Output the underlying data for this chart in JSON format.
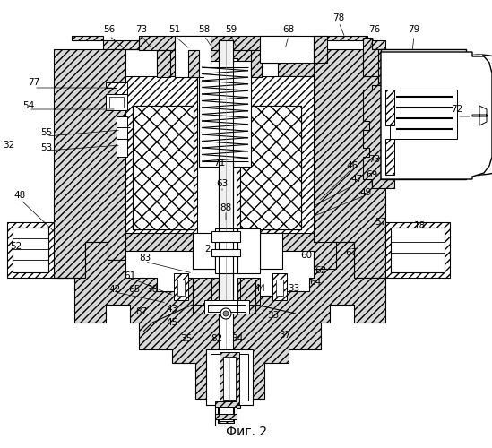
{
  "title": "Фиг. 2",
  "title_fontsize": 10,
  "bg_color": "#ffffff",
  "labels": [
    [
      "56",
      122,
      33
    ],
    [
      "73",
      158,
      33
    ],
    [
      "51",
      195,
      33
    ],
    [
      "58",
      228,
      33
    ],
    [
      "59",
      258,
      33
    ],
    [
      "68",
      322,
      33
    ],
    [
      "78",
      378,
      20
    ],
    [
      "76",
      418,
      33
    ],
    [
      "79",
      462,
      33
    ],
    [
      "77",
      38,
      92
    ],
    [
      "54",
      32,
      118
    ],
    [
      "32",
      10,
      162
    ],
    [
      "55",
      52,
      148
    ],
    [
      "53",
      52,
      165
    ],
    [
      "48",
      22,
      218
    ],
    [
      "46",
      393,
      185
    ],
    [
      "47",
      398,
      200
    ],
    [
      "49",
      408,
      215
    ],
    [
      "57",
      425,
      248
    ],
    [
      "18",
      468,
      252
    ],
    [
      "71",
      245,
      182
    ],
    [
      "63",
      248,
      205
    ],
    [
      "88",
      252,
      232
    ],
    [
      "52",
      18,
      275
    ],
    [
      "83",
      162,
      288
    ],
    [
      "61",
      145,
      308
    ],
    [
      "42",
      128,
      323
    ],
    [
      "65",
      150,
      323
    ],
    [
      "38",
      170,
      323
    ],
    [
      "43",
      192,
      345
    ],
    [
      "87",
      158,
      348
    ],
    [
      "45",
      192,
      360
    ],
    [
      "35",
      208,
      378
    ],
    [
      "82",
      242,
      378
    ],
    [
      "34",
      265,
      378
    ],
    [
      "37",
      318,
      374
    ],
    [
      "33",
      305,
      352
    ],
    [
      "44",
      290,
      322
    ],
    [
      "33",
      328,
      322
    ],
    [
      "64",
      352,
      315
    ],
    [
      "62",
      358,
      302
    ],
    [
      "60",
      342,
      285
    ],
    [
      "67",
      392,
      282
    ],
    [
      "73",
      418,
      178
    ],
    [
      "69",
      415,
      195
    ],
    [
      "2",
      232,
      278
    ],
    [
      "72",
      510,
      122
    ]
  ],
  "label_fontsize": 7.5
}
